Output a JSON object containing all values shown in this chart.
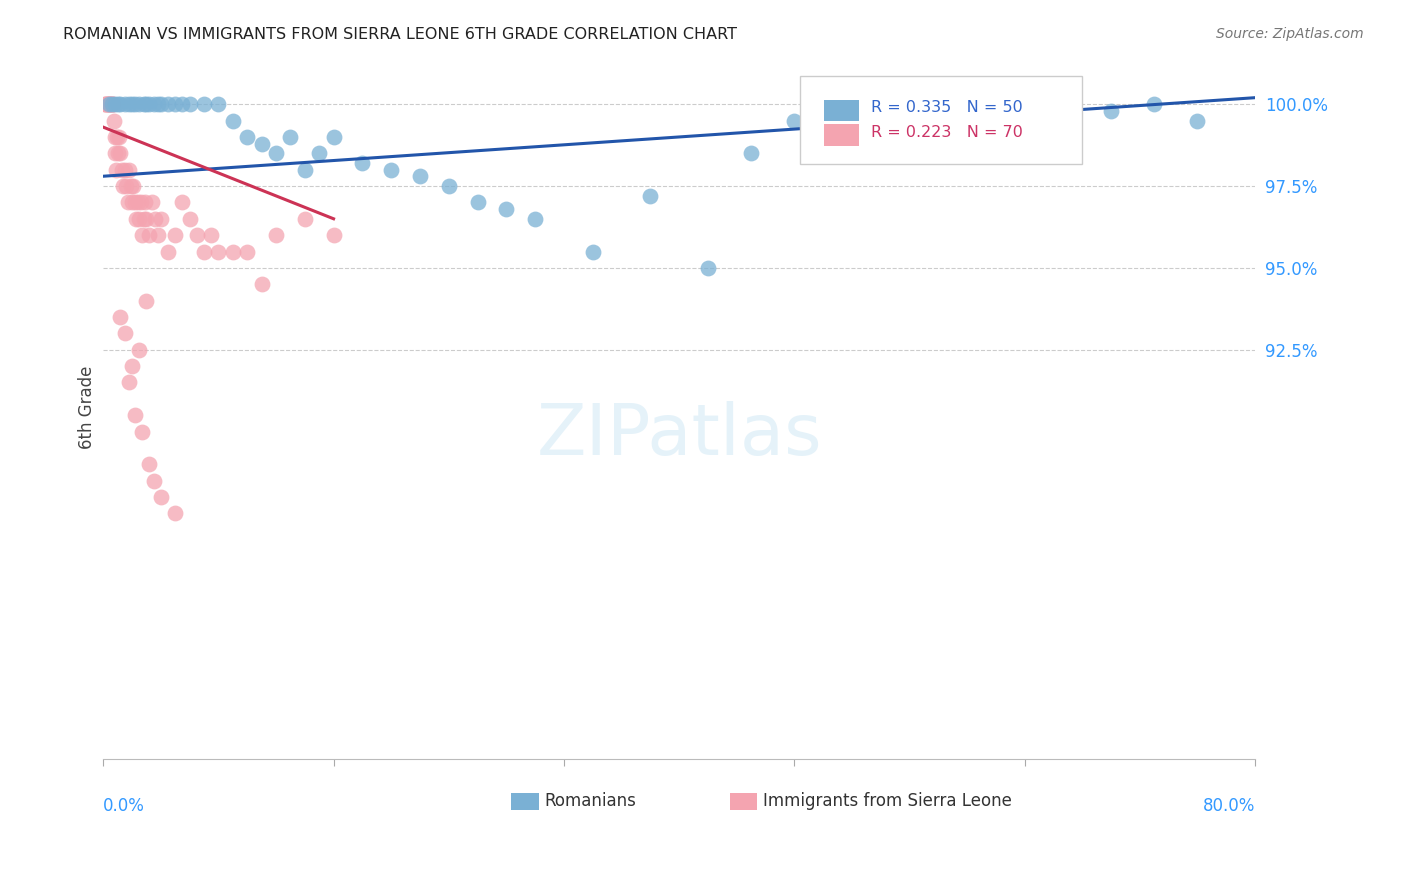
{
  "title": "ROMANIAN VS IMMIGRANTS FROM SIERRA LEONE 6TH GRADE CORRELATION CHART",
  "source": "Source: ZipAtlas.com",
  "ylabel_label": "6th Grade",
  "xlim": [
    0.0,
    80.0
  ],
  "ylim": [
    80.0,
    101.5
  ],
  "yticks": [
    92.5,
    95.0,
    97.5,
    100.0
  ],
  "ytick_labels": [
    "92.5%",
    "95.0%",
    "97.5%",
    "100.0%"
  ],
  "blue_R": 0.335,
  "blue_N": 50,
  "pink_R": 0.223,
  "pink_N": 70,
  "legend_blue": "Romanians",
  "legend_pink": "Immigrants from Sierra Leone",
  "blue_color": "#7ab0d4",
  "pink_color": "#f4a4b0",
  "trend_blue_color": "#2255aa",
  "trend_pink_color": "#cc3355",
  "background_color": "#ffffff",
  "blue_x": [
    0.4,
    0.6,
    0.8,
    1.0,
    1.2,
    1.5,
    1.8,
    2.0,
    2.2,
    2.5,
    2.8,
    3.0,
    3.2,
    3.5,
    3.8,
    4.0,
    4.5,
    5.0,
    5.5,
    6.0,
    7.0,
    8.0,
    9.0,
    10.0,
    11.0,
    12.0,
    13.0,
    14.0,
    15.0,
    16.0,
    18.0,
    20.0,
    22.0,
    24.0,
    26.0,
    28.0,
    30.0,
    34.0,
    38.0,
    42.0,
    45.0,
    48.0,
    52.0,
    55.0,
    60.0,
    65.0,
    67.0,
    70.0,
    73.0,
    76.0
  ],
  "blue_y": [
    100.0,
    100.0,
    100.0,
    100.0,
    100.0,
    100.0,
    100.0,
    100.0,
    100.0,
    100.0,
    100.0,
    100.0,
    100.0,
    100.0,
    100.0,
    100.0,
    100.0,
    100.0,
    100.0,
    100.0,
    100.0,
    100.0,
    99.5,
    99.0,
    98.8,
    98.5,
    99.0,
    98.0,
    98.5,
    99.0,
    98.2,
    98.0,
    97.8,
    97.5,
    97.0,
    96.8,
    96.5,
    95.5,
    97.2,
    95.0,
    98.5,
    99.5,
    100.0,
    99.5,
    99.8,
    100.0,
    100.0,
    99.8,
    100.0,
    99.5
  ],
  "pink_x": [
    0.1,
    0.15,
    0.2,
    0.25,
    0.3,
    0.35,
    0.4,
    0.45,
    0.5,
    0.55,
    0.6,
    0.65,
    0.7,
    0.75,
    0.8,
    0.85,
    0.9,
    0.95,
    1.0,
    1.1,
    1.2,
    1.3,
    1.4,
    1.5,
    1.6,
    1.7,
    1.8,
    1.9,
    2.0,
    2.1,
    2.2,
    2.3,
    2.4,
    2.5,
    2.6,
    2.7,
    2.8,
    2.9,
    3.0,
    3.2,
    3.4,
    3.6,
    3.8,
    4.0,
    4.5,
    5.0,
    5.5,
    6.0,
    6.5,
    7.0,
    7.5,
    8.0,
    9.0,
    10.0,
    11.0,
    12.0,
    14.0,
    16.0,
    3.0,
    2.5,
    1.5,
    2.0,
    1.8,
    2.2,
    3.5,
    4.0,
    5.0,
    3.2,
    2.7,
    1.2
  ],
  "pink_y": [
    100.0,
    100.0,
    100.0,
    100.0,
    100.0,
    100.0,
    100.0,
    100.0,
    100.0,
    100.0,
    100.0,
    100.0,
    100.0,
    99.5,
    99.0,
    98.5,
    98.0,
    99.0,
    98.5,
    99.0,
    98.5,
    98.0,
    97.5,
    98.0,
    97.5,
    97.0,
    98.0,
    97.5,
    97.0,
    97.5,
    97.0,
    96.5,
    97.0,
    96.5,
    97.0,
    96.0,
    96.5,
    97.0,
    96.5,
    96.0,
    97.0,
    96.5,
    96.0,
    96.5,
    95.5,
    96.0,
    97.0,
    96.5,
    96.0,
    95.5,
    96.0,
    95.5,
    95.5,
    95.5,
    94.5,
    96.0,
    96.5,
    96.0,
    94.0,
    92.5,
    93.0,
    92.0,
    91.5,
    90.5,
    88.5,
    88.0,
    87.5,
    89.0,
    90.0,
    93.5
  ],
  "blue_trend_x": [
    0.0,
    80.0
  ],
  "blue_trend_y": [
    97.8,
    100.2
  ],
  "pink_trend_x": [
    0.0,
    16.0
  ],
  "pink_trend_y": [
    99.3,
    96.5
  ],
  "watermark": "ZIPatlas"
}
